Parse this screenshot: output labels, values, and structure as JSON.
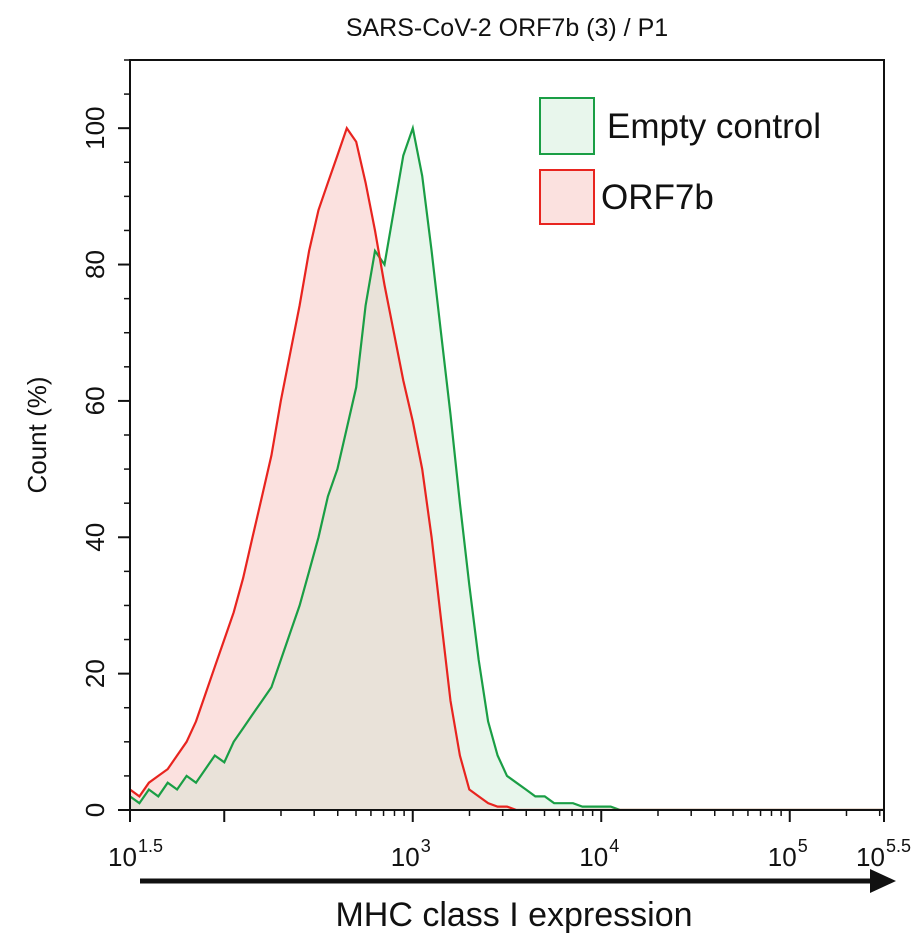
{
  "chart_data": {
    "type": "area",
    "title": "SARS-CoV-2 ORF7b (3) / P1",
    "xlabel": "MHC class I expression",
    "ylabel": "Count  (%)",
    "xscale": "log10",
    "xlim": [
      1.5,
      5.5
    ],
    "ylim": [
      0,
      110
    ],
    "x_ticks": [
      {
        "value": 1.5,
        "base": "10",
        "exp": "1.5"
      },
      {
        "value": 3,
        "base": "10",
        "exp": "3"
      },
      {
        "value": 4,
        "base": "10",
        "exp": "4"
      },
      {
        "value": 5,
        "base": "10",
        "exp": "5"
      },
      {
        "value": 5.5,
        "base": "10",
        "exp": "5.5"
      }
    ],
    "x_minor_ticks": [
      2
    ],
    "y_ticks": [
      0,
      20,
      40,
      60,
      80,
      100
    ],
    "legend_position": "top-right",
    "x": [
      1.5,
      1.55,
      1.6,
      1.65,
      1.7,
      1.75,
      1.8,
      1.85,
      1.9,
      1.95,
      2.0,
      2.05,
      2.1,
      2.15,
      2.2,
      2.25,
      2.3,
      2.35,
      2.4,
      2.45,
      2.5,
      2.55,
      2.6,
      2.65,
      2.7,
      2.75,
      2.8,
      2.85,
      2.9,
      2.95,
      3.0,
      3.05,
      3.1,
      3.15,
      3.2,
      3.25,
      3.3,
      3.35,
      3.4,
      3.45,
      3.5,
      3.55,
      3.6,
      3.65,
      3.7,
      3.75,
      3.8,
      3.85,
      3.9,
      3.95,
      4.0,
      4.05,
      4.1,
      4.15,
      4.2,
      4.3,
      4.5,
      4.7,
      4.9,
      5.1,
      5.3,
      5.5
    ],
    "series": [
      {
        "name": "Empty control",
        "line_color": "#1a9e45",
        "fill_color": "#e8f6ec",
        "values": [
          2,
          1,
          3,
          2,
          4,
          3,
          5,
          4,
          6,
          8,
          7,
          10,
          12,
          14,
          16,
          18,
          22,
          26,
          30,
          35,
          40,
          46,
          50,
          56,
          62,
          74,
          82,
          80,
          88,
          96,
          100,
          93,
          82,
          70,
          58,
          45,
          33,
          22,
          13,
          8,
          5,
          4,
          3,
          2,
          2,
          1,
          1,
          1,
          0.5,
          0.5,
          0.5,
          0.5,
          0,
          0,
          0,
          0,
          0,
          0,
          0,
          0,
          0,
          0
        ]
      },
      {
        "name": "ORF7b",
        "line_color": "#e8241f",
        "fill_color": "#fbe1df",
        "values": [
          3,
          2,
          4,
          5,
          6,
          8,
          10,
          13,
          17,
          21,
          25,
          29,
          34,
          40,
          46,
          52,
          60,
          67,
          74,
          82,
          88,
          92,
          96,
          100,
          98,
          92,
          85,
          77,
          70,
          63,
          57,
          50,
          40,
          28,
          16,
          8,
          3,
          2,
          1,
          0.5,
          0.5,
          0,
          0,
          0,
          0,
          0,
          0,
          0,
          0,
          0,
          0,
          0,
          0,
          0,
          0,
          0,
          0,
          0,
          0,
          0,
          0,
          0
        ]
      }
    ]
  },
  "colors": {
    "empty_line": "#1a9e45",
    "empty_fill": "#e8f6ec",
    "orf_line": "#e8241f",
    "orf_fill": "#fbe1df",
    "overlap_fill": "#e9e2d9",
    "axis": "#111111"
  }
}
